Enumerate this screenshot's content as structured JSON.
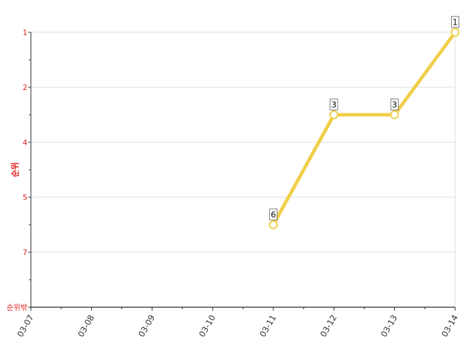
{
  "chart_data": {
    "type": "line",
    "x": [
      "03-07",
      "03-08",
      "03-09",
      "03-10",
      "03-11",
      "03-12",
      "03-13",
      "03-14"
    ],
    "y_tick_labels": [
      "1",
      "2",
      "4",
      "5",
      "7",
      "순위밖"
    ],
    "ylabel": "순위",
    "series": [
      {
        "values": [
          null,
          null,
          null,
          null,
          6,
          3,
          3,
          1
        ],
        "data_labels": [
          "",
          "",
          "",
          "",
          "6",
          "3",
          "3",
          "1"
        ],
        "color": "#f0cf4a"
      }
    ],
    "y_inverted": true,
    "grid": true,
    "legend": "none"
  }
}
